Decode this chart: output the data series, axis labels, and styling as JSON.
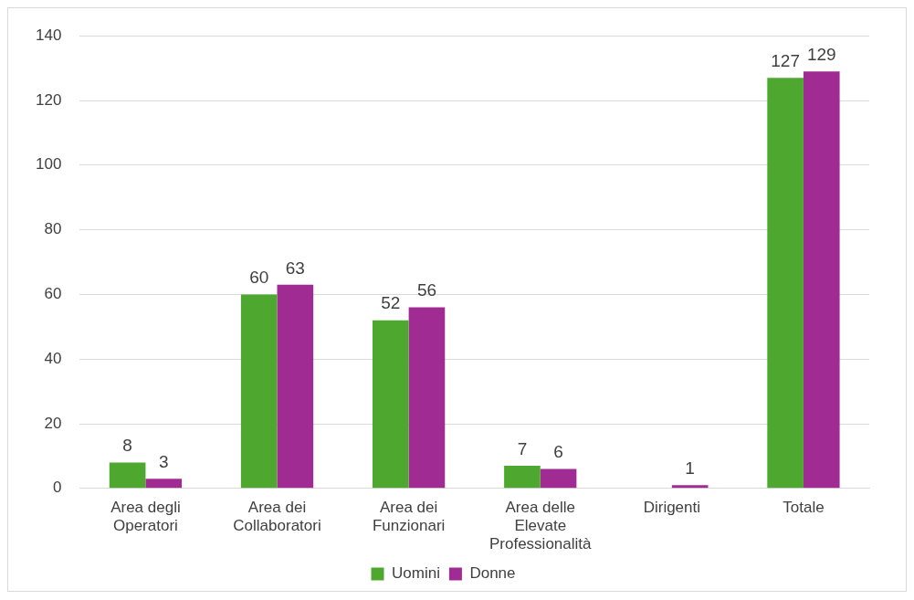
{
  "chart_data": {
    "type": "bar",
    "categories": [
      "Area degli Operatori",
      "Area dei Collaboratori",
      "Area dei Funzionari",
      "Area delle Elevate Professionalità",
      "Dirigenti",
      "Totale"
    ],
    "series": [
      {
        "name": "Uomini",
        "color": "#4ea72e",
        "values": [
          8,
          60,
          52,
          7,
          null,
          127
        ]
      },
      {
        "name": "Donne",
        "color": "#a02b93",
        "values": [
          3,
          63,
          56,
          6,
          1,
          129
        ]
      }
    ],
    "ylim": [
      0,
      140
    ],
    "yticks": [
      0,
      20,
      40,
      60,
      80,
      100,
      120,
      140
    ],
    "grid": "y",
    "legend": "bottom",
    "data_labels": true
  }
}
